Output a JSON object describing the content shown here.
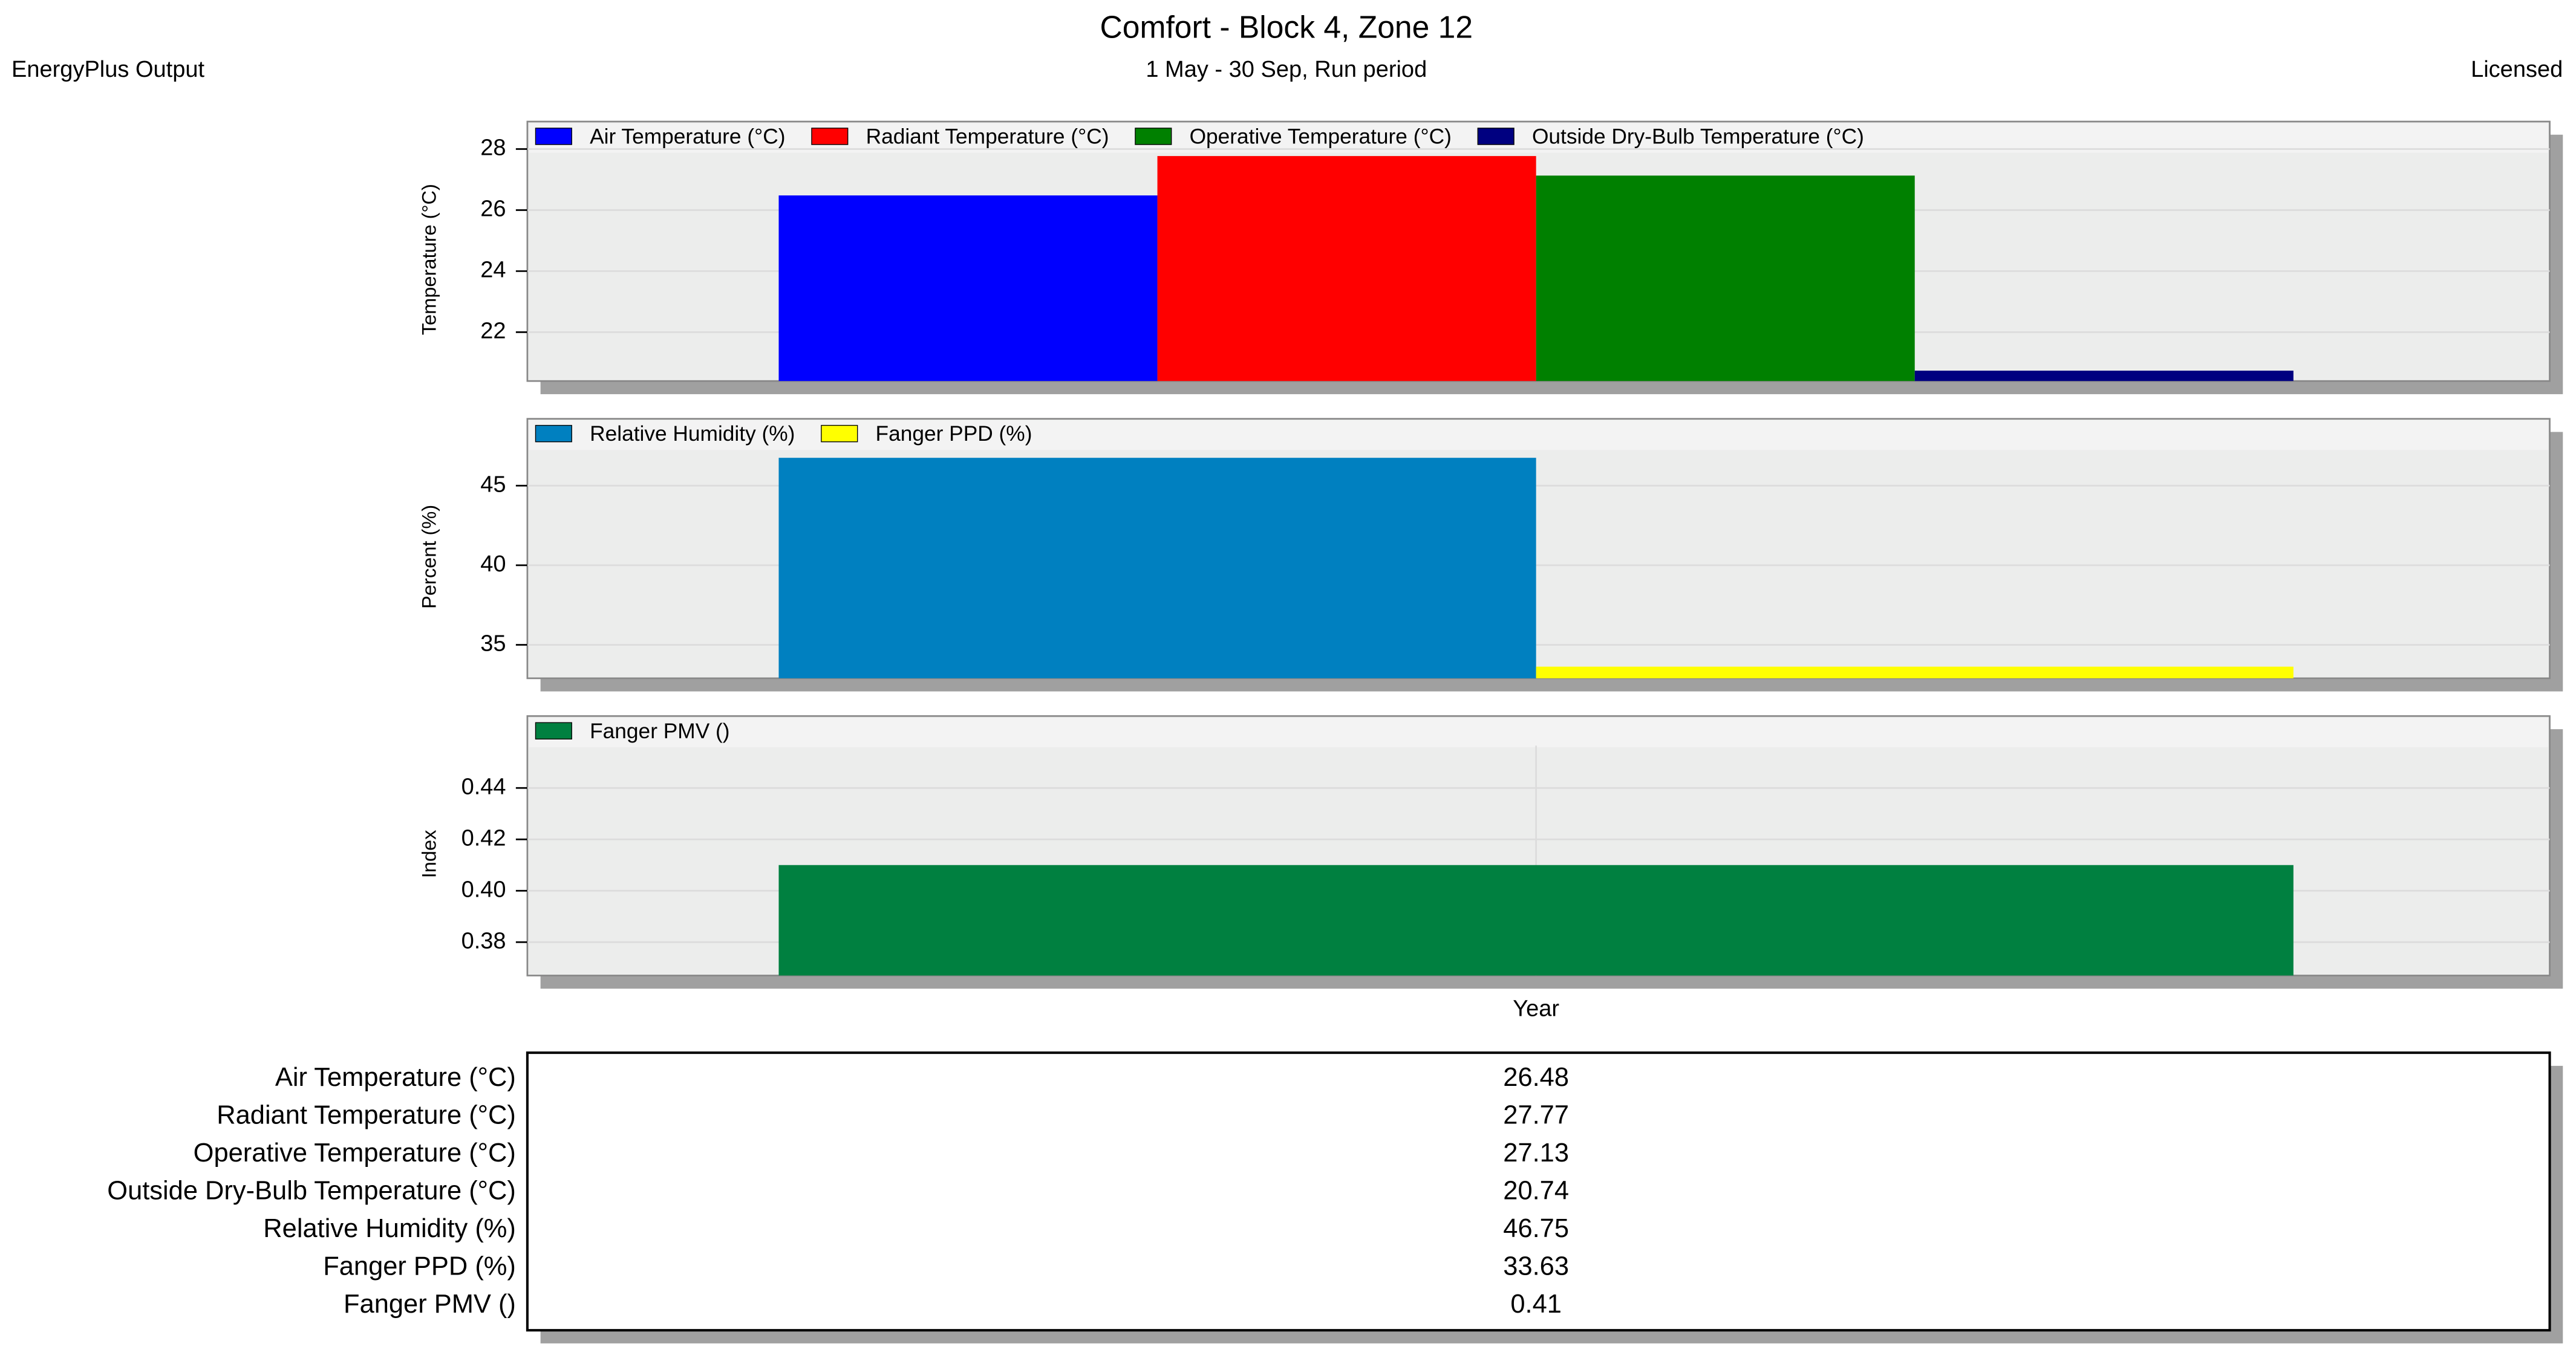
{
  "header": {
    "title": "Comfort - Block 4, Zone 12",
    "subtitle": "1 May - 30 Sep, Run period",
    "left": "EnergyPlus Output",
    "right": "Licensed"
  },
  "chart_data": [
    {
      "type": "bar",
      "ylabel": "Temperature (°C)",
      "ylim": [
        20.4,
        28.9
      ],
      "yticks": [
        22,
        24,
        26,
        28
      ],
      "grid": true,
      "series": [
        {
          "name": "Air Temperature (°C)",
          "color": "#0000ff",
          "values": [
            26.48
          ]
        },
        {
          "name": "Radiant Temperature (°C)",
          "color": "#ff0000",
          "values": [
            27.77
          ]
        },
        {
          "name": "Operative Temperature (°C)",
          "color": "#008000",
          "values": [
            27.13
          ]
        },
        {
          "name": "Outside Dry-Bulb Temperature (°C)",
          "color": "#000080",
          "values": [
            20.74
          ]
        }
      ]
    },
    {
      "type": "bar",
      "ylabel": "Percent (%)",
      "ylim": [
        32.9,
        49.2
      ],
      "yticks": [
        35,
        40,
        45
      ],
      "grid": true,
      "series": [
        {
          "name": "Relative Humidity (%)",
          "color": "#0080c0",
          "values": [
            46.75
          ]
        },
        {
          "name": "Fanger PPD (%)",
          "color": "#ffff00",
          "values": [
            33.63
          ]
        }
      ]
    },
    {
      "type": "bar",
      "ylabel": "Index",
      "categories": [
        "Year"
      ],
      "ylim": [
        0.367,
        0.468
      ],
      "yticks": [
        0.38,
        {
          "value": 0.4,
          "label": "0.40"
        },
        0.42,
        0.44
      ],
      "grid": true,
      "series": [
        {
          "name": "Fanger PMV ()",
          "color": "#008040",
          "values": [
            0.41
          ]
        }
      ]
    }
  ],
  "table": {
    "rows": [
      [
        "Air Temperature (°C)",
        "26.48"
      ],
      [
        "Radiant Temperature (°C)",
        "27.77"
      ],
      [
        "Operative Temperature (°C)",
        "27.13"
      ],
      [
        "Outside Dry-Bulb Temperature (°C)",
        "20.74"
      ],
      [
        "Relative Humidity (%)",
        "46.75"
      ],
      [
        "Fanger PPD (%)",
        "33.63"
      ],
      [
        "Fanger PMV ()",
        "0.41"
      ]
    ]
  }
}
